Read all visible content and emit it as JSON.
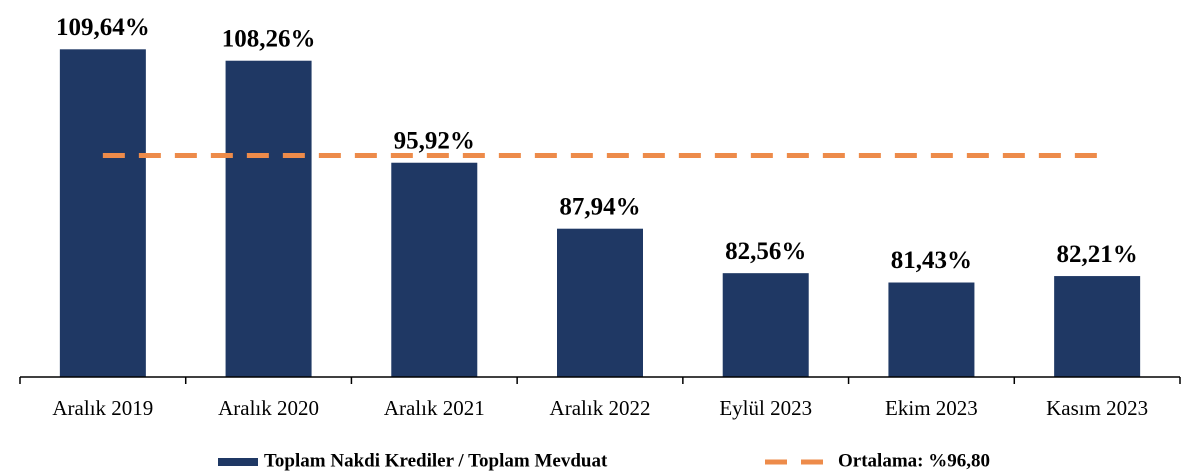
{
  "chart_data": {
    "type": "bar",
    "categories": [
      "Aralık 2019",
      "Aralık 2020",
      "Aralık 2021",
      "Aralık 2022",
      "Eylül 2023",
      "Ekim 2023",
      "Kasım 2023"
    ],
    "series": [
      {
        "name": "Toplam Nakdi Krediler / Toplam Mevduat",
        "color": "#1f3864",
        "values": [
          109.64,
          108.26,
          95.92,
          87.94,
          82.56,
          81.43,
          82.21
        ],
        "value_labels": [
          "109,64%",
          "108,26%",
          "95,92%",
          "87,94%",
          "82,56%",
          "81,43%",
          "82,21%"
        ]
      }
    ],
    "average": {
      "name": "Ortalama: %96,80",
      "value": 96.8,
      "color": "#ed8b4a"
    },
    "ylim": [
      70,
      115
    ]
  }
}
